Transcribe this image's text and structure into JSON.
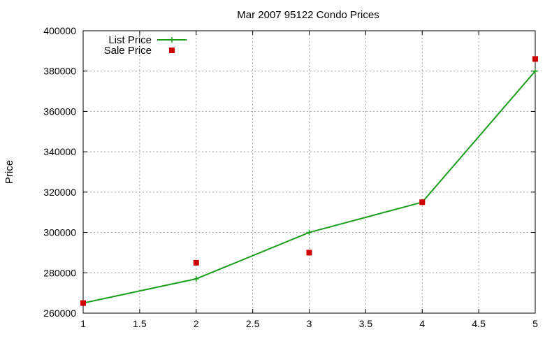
{
  "chart_data": {
    "type": "line",
    "title": "Mar 2007 95122 Condo Prices",
    "xlabel": "",
    "ylabel": "Price",
    "xlim": [
      1,
      5
    ],
    "ylim": [
      260000,
      400000
    ],
    "x_ticks": [
      "1",
      "1.5",
      "2",
      "2.5",
      "3",
      "3.5",
      "4",
      "4.5",
      "5"
    ],
    "y_ticks": [
      "260000",
      "280000",
      "300000",
      "320000",
      "340000",
      "360000",
      "380000",
      "400000"
    ],
    "grid": true,
    "legend_position": "top-left",
    "series": [
      {
        "name": "List Price",
        "style": "line-with-plus-markers",
        "color": "#1a9e1a",
        "x": [
          1,
          2,
          3,
          4,
          5
        ],
        "y": [
          265000,
          277000,
          300000,
          315000,
          380000
        ]
      },
      {
        "name": "Sale Price",
        "style": "square-markers",
        "color": "#cc0000",
        "x": [
          1,
          2,
          3,
          4,
          5
        ],
        "y": [
          265000,
          285000,
          290000,
          315000,
          386000
        ]
      }
    ]
  }
}
